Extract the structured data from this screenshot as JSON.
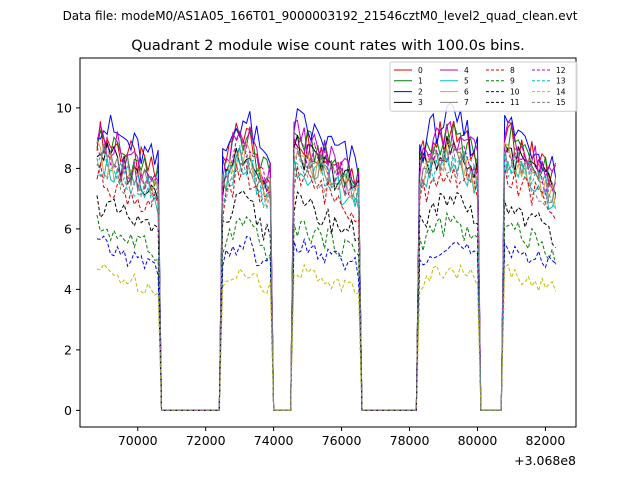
{
  "figure": {
    "suptitle": "Data file: modeM0/AS1A05_166T01_9000003192_21546cztM0_level2_quad_clean.evt",
    "background": "#ffffff"
  },
  "chart_data": {
    "type": "line",
    "title": "Quadrant 2 module wise count rates with 100.0s bins.",
    "xlabel": "",
    "ylabel": "",
    "x_offset_label": "+3.068e8",
    "xlim": [
      68300,
      82900
    ],
    "ylim": [
      -0.55,
      11.65
    ],
    "x_ticks": [
      70000,
      72000,
      74000,
      76000,
      78000,
      80000,
      82000
    ],
    "y_ticks": [
      0,
      2,
      4,
      6,
      8,
      10
    ],
    "bin_size_s": 100.0,
    "x_start": 68800,
    "x_step": 100,
    "segments": [
      {
        "from": 68800,
        "to": 70600,
        "shape": "decay",
        "amp": 1.0
      },
      {
        "from": 72500,
        "to": 73900,
        "shape": "rise",
        "amp": 1.0
      },
      {
        "from": 74600,
        "to": 76500,
        "shape": "decay",
        "amp": 1.0
      },
      {
        "from": 78300,
        "to": 80000,
        "shape": "flat",
        "amp": 1.0
      },
      {
        "from": 80800,
        "to": 82300,
        "shape": "decay",
        "amp": 1.0
      }
    ],
    "series": [
      {
        "name": "0",
        "level": 8.8,
        "color": "#e00000",
        "dash": "solid"
      },
      {
        "name": "1",
        "level": 8.7,
        "color": "#008000",
        "dash": "solid"
      },
      {
        "name": "2",
        "level": 9.2,
        "color": "#0000ff",
        "dash": "solid"
      },
      {
        "name": "3",
        "level": 8.3,
        "color": "#000000",
        "dash": "solid"
      },
      {
        "name": "4",
        "level": 8.8,
        "color": "#bf00bf",
        "dash": "solid"
      },
      {
        "name": "5",
        "level": 7.9,
        "color": "#00bfbf",
        "dash": "solid"
      },
      {
        "name": "6",
        "level": 8.1,
        "color": "#e0a040",
        "dash": "solid"
      },
      {
        "name": "7",
        "level": 8.2,
        "color": "#808080",
        "dash": "solid"
      },
      {
        "name": "8",
        "level": 7.5,
        "color": "#e00000",
        "dash": "dashed"
      },
      {
        "name": "9",
        "level": 5.9,
        "color": "#008000",
        "dash": "dashed"
      },
      {
        "name": "10",
        "level": 5.3,
        "color": "#0000ff",
        "dash": "dashed"
      },
      {
        "name": "11",
        "level": 6.6,
        "color": "#000000",
        "dash": "dashed"
      },
      {
        "name": "12",
        "level": 8.4,
        "color": "#bf00bf",
        "dash": "dashed"
      },
      {
        "name": "13",
        "level": 8.0,
        "color": "#00bfbf",
        "dash": "dashed"
      },
      {
        "name": "14",
        "level": 4.5,
        "color": "#bfbf00",
        "dash": "dashed"
      },
      {
        "name": "15",
        "level": 7.9,
        "color": "#808080",
        "dash": "dashed"
      }
    ],
    "legend": {
      "location": "top-right",
      "columns": 4
    }
  }
}
